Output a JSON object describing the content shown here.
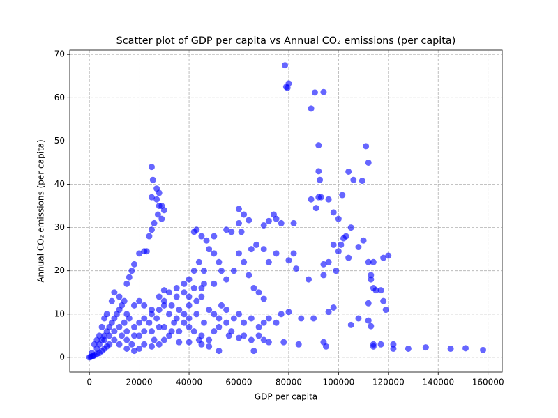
{
  "chart_data": {
    "type": "scatter",
    "title": "Scatter plot of GDP per capita vs Annual CO₂ emissions (per capita)",
    "xlabel": "GDP per capita",
    "ylabel": "Annual CO₂ emissions (per capita)",
    "color": "#0000ff",
    "grid": true,
    "xlim": [
      -7890,
      165690
    ],
    "ylim": [
      -3.4,
      71
    ],
    "xticks": [
      0,
      20000,
      40000,
      60000,
      80000,
      100000,
      120000,
      140000,
      160000
    ],
    "yticks": [
      0,
      10,
      20,
      30,
      40,
      50,
      60,
      70
    ],
    "x": [
      78500,
      79000,
      80000,
      79500,
      89000,
      90500,
      94000,
      92000,
      111000,
      112000,
      92000,
      104000,
      92500,
      106000,
      109500,
      101500,
      93000,
      92000,
      96000,
      89000,
      91000,
      98000,
      100000,
      82000,
      77000,
      74000,
      72000,
      75000,
      70000,
      60000,
      62000,
      64000,
      60000,
      61000,
      55000,
      57000,
      50000,
      47000,
      45000,
      43000,
      42000,
      25000,
      25500,
      25000,
      27000,
      28000,
      27000,
      28000,
      29000,
      30000,
      27500,
      29000,
      26000,
      25000,
      24000,
      22000,
      23000,
      20000,
      18000,
      17000,
      16000,
      15000,
      60000,
      62000,
      65000,
      67000,
      70000,
      72000,
      75000,
      80000,
      82000,
      83000,
      88000,
      94000,
      96000,
      94000,
      98000,
      99000,
      100000,
      101000,
      102000,
      103000,
      104000,
      105000,
      108000,
      110000,
      112000,
      114000,
      118000,
      120000,
      113000,
      113000,
      114000,
      115000,
      117000,
      118000,
      119000,
      112000,
      113000,
      114000,
      114000,
      117000,
      122000,
      122000,
      128000,
      135000,
      145000,
      151000,
      158000,
      94000,
      95000,
      84000,
      78000,
      72000,
      70000,
      66000,
      52000,
      48000,
      40000,
      45000,
      96000,
      98000,
      108000,
      112000,
      105000,
      90000,
      85000,
      80000,
      77000,
      70000,
      68000,
      66000,
      64000,
      58000,
      55000,
      50000,
      45000,
      40000,
      38000,
      35000,
      32000,
      30000,
      48000,
      50000,
      52000,
      44000,
      42000,
      40000,
      46000,
      53000,
      0,
      500,
      1000,
      1500,
      2000,
      3000,
      4000,
      5000,
      6000,
      7000,
      8000,
      3000,
      4000,
      5000,
      6000,
      7000,
      8000,
      9000,
      10000,
      11000,
      12000,
      13000,
      10000,
      12000,
      9000,
      14000,
      6000,
      7000,
      5000,
      8000,
      10000,
      12000,
      15000,
      18000,
      20000,
      22000,
      25000,
      28000,
      30000,
      15000,
      18000,
      20000,
      22000,
      25000,
      28000,
      30000,
      32000,
      35000,
      38000,
      40000,
      42000,
      45000,
      48000,
      50000,
      52000,
      55000,
      58000,
      60000,
      62000,
      65000,
      68000,
      70000,
      72000,
      75000,
      15000,
      18000,
      20000,
      22000,
      25000,
      28000,
      30000,
      33000,
      36000,
      40000,
      43000,
      45000,
      48000,
      50000,
      53000,
      55000,
      15000,
      18000,
      20000,
      22000,
      25000,
      28000,
      30000,
      33000,
      36000,
      40000,
      43000,
      46000,
      52000,
      57000,
      12000,
      14000,
      16000,
      10000,
      6000,
      4000,
      3000,
      2000,
      1000,
      35000,
      38000,
      42000,
      46000,
      24000,
      26000,
      32000,
      44000,
      56000,
      60000,
      62000,
      65000,
      68000,
      36000,
      34000,
      38000,
      27000,
      17000,
      13000
    ],
    "y": [
      67.5,
      62.5,
      63.3,
      62.3,
      57.5,
      61.2,
      61.3,
      49,
      48.8,
      45,
      43,
      42.9,
      41,
      41,
      40.8,
      37.5,
      37,
      37,
      36.5,
      36.5,
      34.5,
      33.5,
      32,
      31,
      31,
      33,
      31.5,
      32,
      30.5,
      34.3,
      33,
      31.7,
      31,
      29,
      29.5,
      29,
      28,
      27,
      28,
      29.5,
      29,
      44,
      41,
      37,
      39,
      38,
      36.5,
      35,
      35,
      34,
      33,
      32,
      31,
      29.5,
      28,
      24.5,
      24.5,
      24,
      21.5,
      20,
      18.5,
      17,
      24,
      22,
      25,
      26,
      25,
      22,
      24,
      22.4,
      24,
      20.5,
      18,
      21.5,
      22,
      19,
      26,
      20,
      24.5,
      26,
      27.5,
      28,
      23,
      30,
      25.5,
      27,
      22,
      22,
      23,
      23.5,
      19,
      18,
      16,
      15.5,
      15.5,
      13,
      11,
      12.5,
      7.2,
      3,
      2.5,
      3,
      3,
      2,
      2,
      2.3,
      2,
      2.1,
      1.7,
      3.5,
      2.5,
      3,
      3.5,
      3.5,
      4,
      1.5,
      1.5,
      2.5,
      3.5,
      3,
      10.5,
      11.5,
      9,
      8.5,
      7.5,
      9,
      9,
      10.5,
      10,
      13.5,
      15,
      16,
      19,
      20,
      18,
      17,
      16,
      14,
      17,
      16,
      15,
      15.5,
      25,
      24,
      22,
      22,
      20,
      18,
      20,
      20,
      0,
      0.1,
      0.2,
      0.3,
      0.5,
      0.8,
      1,
      1.5,
      2,
      2.5,
      3,
      2,
      3,
      4,
      5,
      6,
      7,
      8,
      9,
      10,
      11,
      12,
      15,
      14,
      13,
      13,
      9,
      10,
      7,
      5,
      4,
      3,
      2,
      1.5,
      2,
      3,
      2.5,
      3,
      4,
      6,
      7,
      8,
      9,
      10,
      11,
      12,
      10,
      9,
      8,
      7,
      6,
      5,
      4,
      6,
      7,
      8,
      9,
      10,
      8,
      9,
      7,
      8,
      9,
      8,
      10,
      12,
      13,
      12,
      11,
      14,
      13,
      12,
      11,
      12,
      13,
      14,
      11,
      10,
      12,
      11,
      4,
      5,
      5,
      6,
      6,
      7,
      7,
      6,
      6,
      9,
      10,
      8,
      9,
      6,
      7,
      8,
      9,
      6,
      4,
      5,
      4,
      3,
      1,
      14,
      15,
      16,
      17,
      8,
      4,
      5,
      4,
      5,
      4.5,
      5,
      4,
      5,
      3.5,
      8,
      10,
      9,
      3,
      5
    ]
  }
}
